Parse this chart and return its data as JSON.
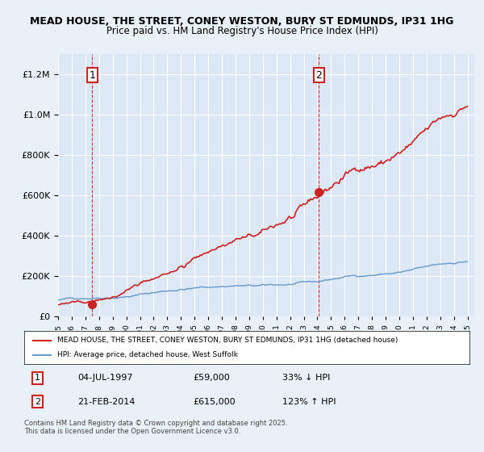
{
  "title": "MEAD HOUSE, THE STREET, CONEY WESTON, BURY ST EDMUNDS, IP31 1HG",
  "subtitle": "Price paid vs. HM Land Registry's House Price Index (HPI)",
  "bg_color": "#e8f0f8",
  "plot_bg_color": "#dce8f5",
  "grid_color": "#ffffff",
  "sale1_date": 1997.5,
  "sale1_price": 59000,
  "sale1_label": "1",
  "sale2_date": 2014.12,
  "sale2_price": 615000,
  "sale2_label": "2",
  "hpi_color": "#6699cc",
  "price_color": "#cc2222",
  "annotation_box_color": "#cc2222",
  "ylim_max": 1300000,
  "xlim_min": 1995,
  "xlim_max": 2025.5,
  "legend_line1": "MEAD HOUSE, THE STREET, CONEY WESTON, BURY ST EDMUNDS, IP31 1HG (detached house)",
  "legend_line2": "HPI: Average price, detached house, West Suffolk",
  "table_row1": [
    "1",
    "04-JUL-1997",
    "£59,000",
    "33% ↓ HPI"
  ],
  "table_row2": [
    "2",
    "21-FEB-2014",
    "£615,000",
    "123% ↑ HPI"
  ],
  "footer": "Contains HM Land Registry data © Crown copyright and database right 2025.\nThis data is licensed under the Open Government Licence v3.0."
}
